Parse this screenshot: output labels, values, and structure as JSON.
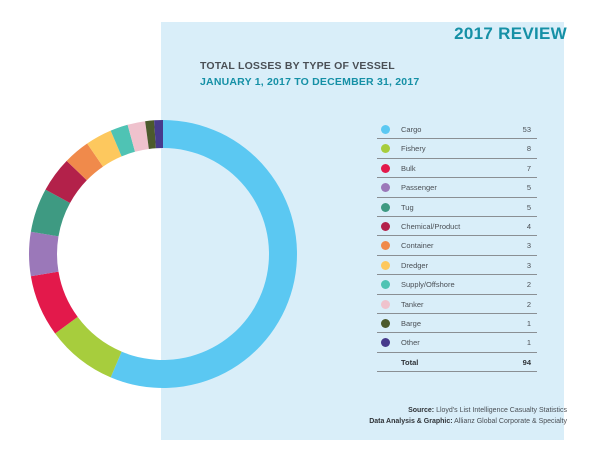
{
  "header": {
    "review": "2017 REVIEW",
    "title": "TOTAL LOSSES BY TYPE OF VESSEL",
    "subtitle": "JANUARY 1, 2017 TO DECEMBER 31, 2017"
  },
  "chart_data": {
    "type": "pie",
    "categories": [
      "Cargo",
      "Fishery",
      "Bulk",
      "Passenger",
      "Tug",
      "Chemical/Product",
      "Container",
      "Dredger",
      "Supply/Offshore",
      "Tanker",
      "Barge",
      "Other"
    ],
    "values": [
      53,
      8,
      7,
      5,
      5,
      4,
      3,
      3,
      2,
      2,
      1,
      1
    ],
    "colors": [
      "#5bc8f2",
      "#a7cd3d",
      "#e3194b",
      "#9b78b9",
      "#3e9a82",
      "#b3214a",
      "#f08a4b",
      "#fdc85e",
      "#4fc3b4",
      "#efc2cd",
      "#4c5a2c",
      "#473a8c"
    ],
    "total_label": "Total",
    "total_value": 94,
    "legend_position": "right"
  },
  "footer": {
    "source_label": "Source:",
    "source_text": "Lloyd's List Intelligence Casualty Statistics",
    "credit_label": "Data Analysis & Graphic:",
    "credit_text": "Allianz Global Corporate & Specialty"
  }
}
